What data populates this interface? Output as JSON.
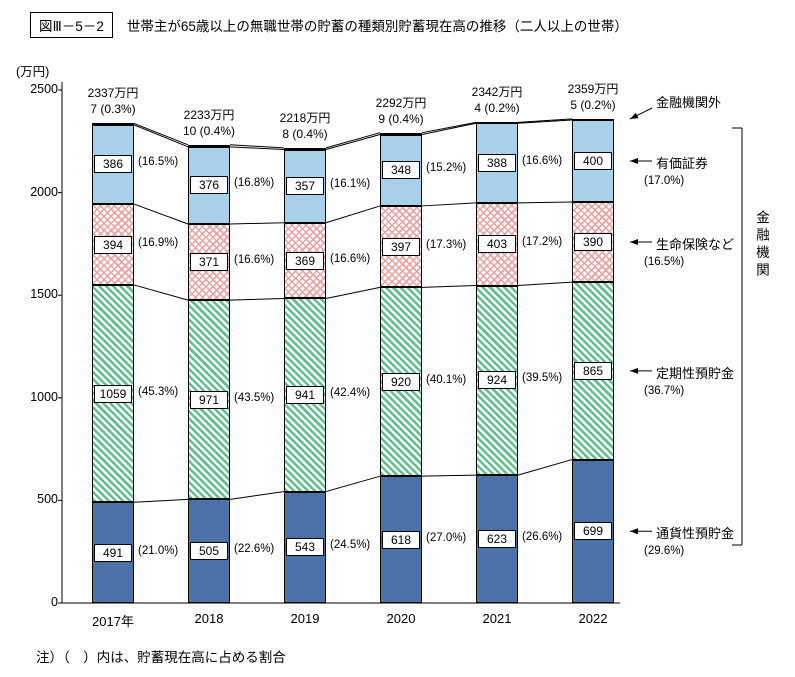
{
  "page": {
    "title_box": "図Ⅲ－5－2",
    "title": "世帯主が65歳以上の無職世帯の貯蓄の種類別貯蓄現在高の推移（二人以上の世帯）",
    "unit_label": "(万円)",
    "note": "注）（　）内は、貯蓄現在高に占める割合"
  },
  "chart_data": {
    "type": "bar",
    "stacked": true,
    "title": "世帯主が65歳以上の無職世帯の貯蓄の種類別貯蓄現在高の推移（二人以上の世帯）",
    "ylabel": "万円",
    "ylim": [
      0,
      2500
    ],
    "yticks": [
      0,
      500,
      1000,
      1500,
      2000,
      2500
    ],
    "grid": false,
    "legend_position": "right",
    "categories": [
      "2017年",
      "2018",
      "2019",
      "2020",
      "2021",
      "2022"
    ],
    "totals": [
      2337,
      2233,
      2218,
      2292,
      2342,
      2359
    ],
    "total_labels": [
      "2337万円",
      "2233万円",
      "2218万円",
      "2292万円",
      "2342万円",
      "2359万円"
    ],
    "series": [
      {
        "key": "currency-deposits",
        "name": "通貨性預貯金",
        "color": "#4a72a8",
        "pattern": "solid-blue",
        "values": [
          491,
          505,
          543,
          618,
          623,
          699
        ],
        "pcts": [
          "(21.0%)",
          "(22.6%)",
          "(24.5%)",
          "(27.0%)",
          "(26.6%)",
          "(29.6%)"
        ]
      },
      {
        "key": "time-deposits",
        "name": "定期性預貯金",
        "color": "#5fc08d",
        "pattern": "diagonal-green-hatch",
        "values": [
          1059,
          971,
          941,
          920,
          924,
          865
        ],
        "pcts": [
          "(45.3%)",
          "(43.5%)",
          "(42.4%)",
          "(40.1%)",
          "(39.5%)",
          "(36.7%)"
        ]
      },
      {
        "key": "life-insurance",
        "name": "生命保険など",
        "color": "#eca0a0",
        "pattern": "pink-crosshatch",
        "values": [
          394,
          371,
          369,
          397,
          403,
          390
        ],
        "pcts": [
          "(16.9%)",
          "(16.6%)",
          "(16.6%)",
          "(17.3%)",
          "(17.2%)",
          "(16.5%)"
        ]
      },
      {
        "key": "securities",
        "name": "有価証券",
        "color": "#a8d0e8",
        "pattern": "solid-lightblue",
        "values": [
          386,
          376,
          357,
          348,
          388,
          400
        ],
        "pcts": [
          "(16.5%)",
          "(16.8%)",
          "(16.1%)",
          "(15.2%)",
          "(16.6%)",
          "(17.0%)"
        ]
      },
      {
        "key": "outside-financial-institutions",
        "name": "金融機関外",
        "color": "#ffffff",
        "pattern": "white",
        "values": [
          7,
          10,
          8,
          9,
          4,
          5
        ],
        "pcts": [
          "(0.3%)",
          "(0.4%)",
          "(0.4%)",
          "(0.4%)",
          "(0.2%)",
          "(0.2%)"
        ]
      }
    ],
    "right_labels": [
      {
        "label": "金融機関外",
        "pct": ""
      },
      {
        "label": "有価証券",
        "pct": "(17.0%)"
      },
      {
        "label": "生命保険など",
        "pct": "(16.5%)"
      },
      {
        "label": "定期性預貯金",
        "pct": "(36.7%)"
      },
      {
        "label": "通貨性預貯金",
        "pct": "(29.6%)"
      }
    ],
    "group_bracket_label": "金融機関"
  }
}
